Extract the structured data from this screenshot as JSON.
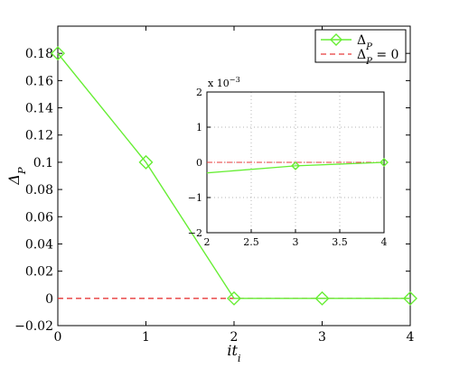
{
  "chart_data": [
    {
      "type": "line",
      "xlabel": "it_i",
      "ylabel": "Δ_P",
      "xlim": [
        0,
        4
      ],
      "ylim": [
        -0.02,
        0.2
      ],
      "x_ticks": [
        0,
        1,
        2,
        3,
        4
      ],
      "y_ticks": [
        -0.02,
        0,
        0.02,
        0.04,
        0.06,
        0.08,
        0.1,
        0.12,
        0.14,
        0.16,
        0.18
      ],
      "x_tick_labels": [
        "0",
        "1",
        "2",
        "3",
        "4"
      ],
      "y_tick_labels": [
        "−0.02",
        "0",
        "0.02",
        "0.04",
        "0.06",
        "0.08",
        "0.1",
        "0.12",
        "0.14",
        "0.16",
        "0.18"
      ],
      "grid": false,
      "legend_position": "top-right",
      "series": [
        {
          "name": "Δ_P",
          "style": "line-diamond",
          "color": "#66ee33",
          "x": [
            0,
            1,
            2,
            3,
            4
          ],
          "y": [
            0.18,
            0.1,
            0,
            0,
            0
          ]
        },
        {
          "name": "Δ_P = 0",
          "style": "dashed",
          "color": "#e83a3a",
          "x": [
            0,
            4
          ],
          "y": [
            0,
            0
          ]
        }
      ]
    },
    {
      "type": "line",
      "role": "inset",
      "xlim": [
        2,
        4
      ],
      "ylim": [
        -0.002,
        0.002
      ],
      "x_ticks": [
        2,
        2.5,
        3,
        3.5,
        4
      ],
      "y_ticks": [
        -0.002,
        -0.001,
        0,
        0.001,
        0.002
      ],
      "x_tick_labels": [
        "2",
        "2.5",
        "3",
        "3.5",
        "4"
      ],
      "y_tick_labels": [
        "−2",
        "−1",
        "0",
        "1",
        "2"
      ],
      "y_scale_note": "x 10",
      "y_scale_exp": "−3",
      "grid": true,
      "series": [
        {
          "style": "line-diamond",
          "color": "#66ee33",
          "x": [
            2,
            3,
            4
          ],
          "y": [
            -0.0003,
            -0.0001,
            0
          ]
        },
        {
          "style": "dashdot",
          "color": "#e83a3a",
          "x": [
            2,
            4
          ],
          "y": [
            0,
            0
          ]
        }
      ]
    }
  ]
}
